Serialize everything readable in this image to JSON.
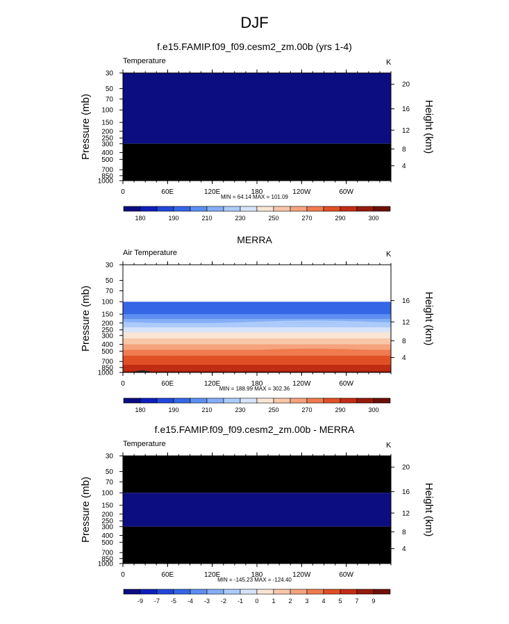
{
  "main_title": "DJF",
  "colors": {
    "colorbar_fills": [
      "#0b0d80",
      "#0e1fbb",
      "#2148d9",
      "#3566e6",
      "#5d8ef2",
      "#85aef7",
      "#adcbfa",
      "#d6e4fa",
      "#f9e5d5",
      "#f7c7a9",
      "#f5a37d",
      "#ef7b4f",
      "#e04f25",
      "#c12d14",
      "#951b0c",
      "#6e1008"
    ],
    "background_block": "#000000",
    "low_fill": "#0b0d80"
  },
  "chart_data": [
    {
      "type": "heatmap",
      "name": "model",
      "title": "f.e15.FAMIP.f09_f09.cesm2_zm.00b (yrs 1-4)",
      "variable_label": "Temperature",
      "units": "K",
      "ylabel": "Pressure (mb)",
      "ylabel_right": "Height (km)",
      "pressure_ticks": [
        "30",
        "50",
        "70",
        "100",
        "150",
        "200",
        "250",
        "300",
        "400",
        "500",
        "700",
        "850",
        "1000"
      ],
      "height_ticks": [
        "20",
        "16",
        "12",
        "8",
        "4"
      ],
      "lon_ticks": [
        "0",
        "60E",
        "120E",
        "180",
        "120W",
        "60W"
      ],
      "stats": "MIN = 64.14 MAX = 101.09",
      "field_description": "uniform below colorbar minimum above 300 mb; no data/black below 300 mb",
      "colorbar_labels": [
        "180",
        "190",
        "210",
        "230",
        "250",
        "270",
        "290",
        "300"
      ]
    },
    {
      "type": "heatmap",
      "name": "obs",
      "title": "MERRA",
      "variable_label": "Air Temperature",
      "units": "K",
      "ylabel": "Pressure (mb)",
      "ylabel_right": "Height (km)",
      "pressure_ticks": [
        "30",
        "50",
        "70",
        "100",
        "150",
        "200",
        "250",
        "300",
        "400",
        "500",
        "700",
        "850",
        "1000"
      ],
      "height_ticks": [
        "16",
        "12",
        "8",
        "4"
      ],
      "lon_ticks": [
        "0",
        "60E",
        "120E",
        "180",
        "120W",
        "60W"
      ],
      "stats": "MIN = 188.99 MAX = 302.36",
      "field_description": "data from 100 mb to 1000 mb, temperature increasing downward",
      "colorbar_labels": [
        "180",
        "190",
        "210",
        "230",
        "250",
        "270",
        "290",
        "300"
      ]
    },
    {
      "type": "heatmap",
      "name": "diff",
      "title": "f.e15.FAMIP.f09_f09.cesm2_zm.00b - MERRA",
      "variable_label": "Temperature",
      "units": "K",
      "ylabel": "Pressure (mb)",
      "ylabel_right": "Height (km)",
      "pressure_ticks": [
        "30",
        "50",
        "70",
        "100",
        "150",
        "200",
        "250",
        "300",
        "400",
        "500",
        "700",
        "850",
        "1000"
      ],
      "height_ticks": [
        "20",
        "16",
        "12",
        "8",
        "4"
      ],
      "lon_ticks": [
        "0",
        "60E",
        "120E",
        "180",
        "120W",
        "60W"
      ],
      "stats": "MIN = -145.23 MAX = -124.40",
      "field_description": "black above 100 mb, below-minimum fill 100-300 mb, black below 300 mb",
      "colorbar_labels": [
        "-9",
        "-7",
        "-5",
        "-4",
        "-3",
        "-2",
        "-1",
        "0",
        "1",
        "2",
        "3",
        "4",
        "5",
        "7",
        "9"
      ]
    }
  ]
}
